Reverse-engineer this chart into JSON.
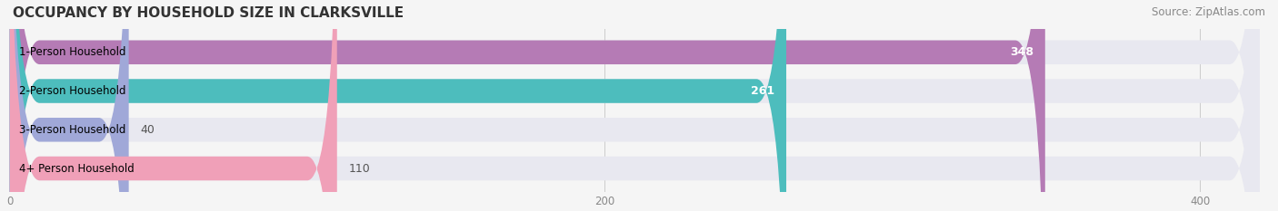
{
  "title": "OCCUPANCY BY HOUSEHOLD SIZE IN CLARKSVILLE",
  "source": "Source: ZipAtlas.com",
  "categories": [
    "1-Person Household",
    "2-Person Household",
    "3-Person Household",
    "4+ Person Household"
  ],
  "values": [
    348,
    261,
    40,
    110
  ],
  "bar_colors": [
    "#b57bb5",
    "#4dbdbd",
    "#a0a8d8",
    "#f0a0b8"
  ],
  "bar_bg_color": "#e8e8f0",
  "xlim": [
    0,
    420
  ],
  "xticks": [
    0,
    200,
    400
  ],
  "label_colors": [
    "white",
    "white",
    "black",
    "black"
  ],
  "title_fontsize": 11,
  "source_fontsize": 8.5,
  "bar_label_fontsize": 9,
  "category_fontsize": 8.5,
  "tick_fontsize": 8.5,
  "background_color": "#f5f5f5"
}
